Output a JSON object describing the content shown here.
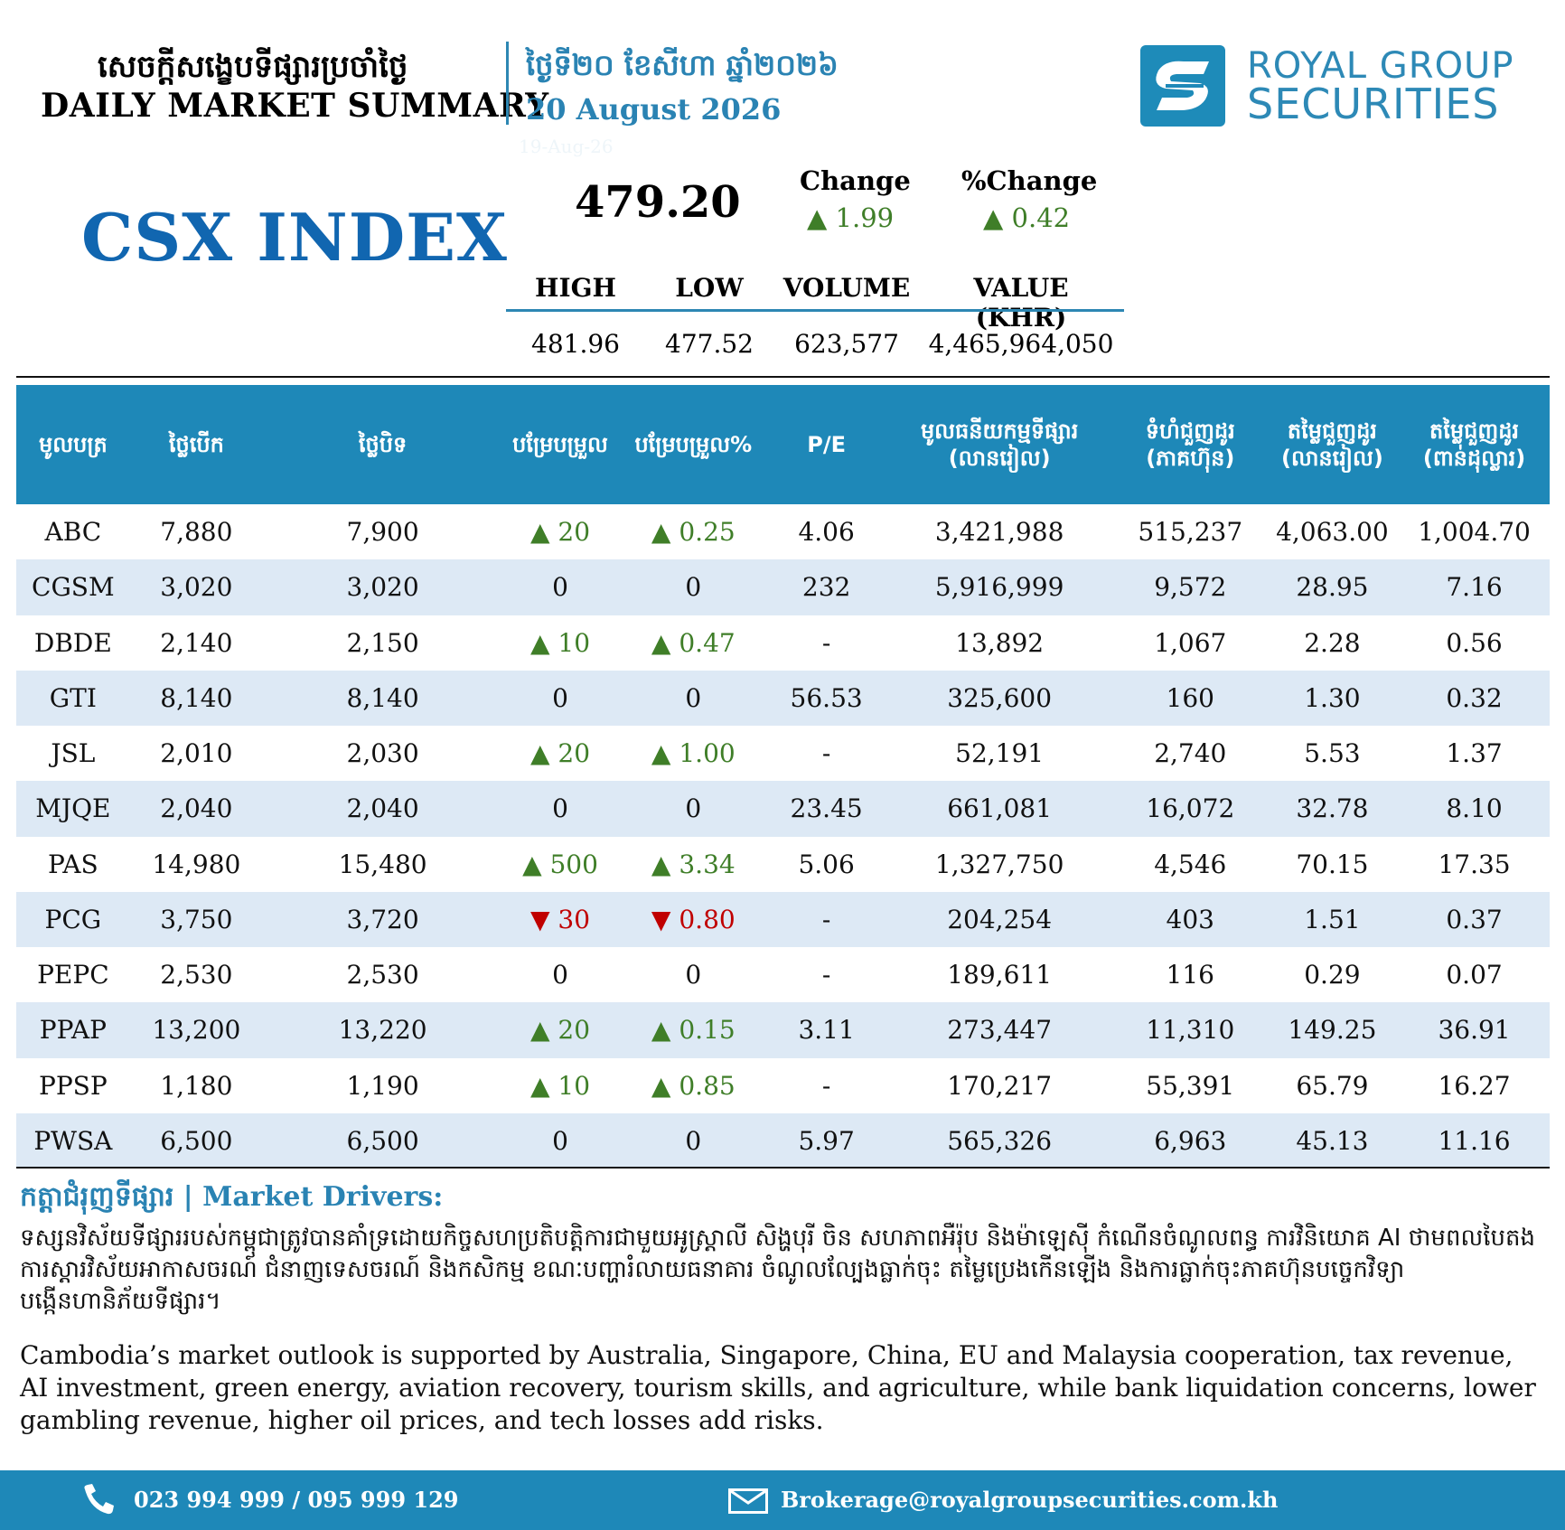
{
  "header": {
    "title_kh": "សេចក្តីសង្ខេបទីផ្សារប្រចាំថ្ងៃ",
    "title_en": "DAILY MARKET SUMMARY",
    "date_kh": "ថ្ងៃទី២០ ខែសីហា ឆ្នាំ២០២៦",
    "date_en": "20 August 2026",
    "date_ghost": "19-Aug-26"
  },
  "logo": {
    "line1": "ROYAL GROUP",
    "line2": "SECURITIES"
  },
  "index": {
    "name": "CSX INDEX",
    "value": "479.20",
    "change_label": "Change",
    "change_value": "▲ 1.99",
    "pct_label": "%Change",
    "pct_value": "▲ 0.42",
    "high_label": "HIGH",
    "low_label": "LOW",
    "volume_label": "VOLUME",
    "valuekhr_label": "VALUE (KHR)",
    "high": "481.96",
    "low": "477.52",
    "volume": "623,577",
    "valuekhr": "4,465,964,050"
  },
  "table": {
    "headers": [
      {
        "l1": "មូលបត្រ",
        "l2": ""
      },
      {
        "l1": "ថ្លៃបើក",
        "l2": ""
      },
      {
        "l1": "ថ្លៃបិទ",
        "l2": ""
      },
      {
        "l1": "បម្រែបម្រួល",
        "l2": ""
      },
      {
        "l1": "បម្រែបម្រួល%",
        "l2": ""
      },
      {
        "l1": "P/E",
        "l2": ""
      },
      {
        "l1": "មូលធនីយកម្មទីផ្សារ",
        "l2": "(លានរៀល)"
      },
      {
        "l1": "ទំហំជួញដូរ",
        "l2": "(ភាគហ៊ុន)"
      },
      {
        "l1": "តម្លៃជួញដូរ",
        "l2": "(លានរៀល)"
      },
      {
        "l1": "តម្លៃជួញដូរ",
        "l2": "(ពាន់ដុល្លារ)"
      }
    ],
    "rows": [
      {
        "sym": "ABC",
        "open": "7,880",
        "close": "7,900",
        "chg": "▲ 20",
        "pct": "▲ 0.25",
        "pe": "4.06",
        "mcap": "3,421,988",
        "vol": "515,237",
        "val_khr": "4,063.00",
        "val_usd": "1,004.70",
        "dir": "up"
      },
      {
        "sym": "CGSM",
        "open": "3,020",
        "close": "3,020",
        "chg": "0",
        "pct": "0",
        "pe": "232",
        "mcap": "5,916,999",
        "vol": "9,572",
        "val_khr": "28.95",
        "val_usd": "7.16",
        "dir": "flat"
      },
      {
        "sym": "DBDE",
        "open": "2,140",
        "close": "2,150",
        "chg": "▲ 10",
        "pct": "▲ 0.47",
        "pe": "-",
        "mcap": "13,892",
        "vol": "1,067",
        "val_khr": "2.28",
        "val_usd": "0.56",
        "dir": "up"
      },
      {
        "sym": "GTI",
        "open": "8,140",
        "close": "8,140",
        "chg": "0",
        "pct": "0",
        "pe": "56.53",
        "mcap": "325,600",
        "vol": "160",
        "val_khr": "1.30",
        "val_usd": "0.32",
        "dir": "flat"
      },
      {
        "sym": "JSL",
        "open": "2,010",
        "close": "2,030",
        "chg": "▲ 20",
        "pct": "▲ 1.00",
        "pe": "-",
        "mcap": "52,191",
        "vol": "2,740",
        "val_khr": "5.53",
        "val_usd": "1.37",
        "dir": "up"
      },
      {
        "sym": "MJQE",
        "open": "2,040",
        "close": "2,040",
        "chg": "0",
        "pct": "0",
        "pe": "23.45",
        "mcap": "661,081",
        "vol": "16,072",
        "val_khr": "32.78",
        "val_usd": "8.10",
        "dir": "flat"
      },
      {
        "sym": "PAS",
        "open": "14,980",
        "close": "15,480",
        "chg": "▲ 500",
        "pct": "▲ 3.34",
        "pe": "5.06",
        "mcap": "1,327,750",
        "vol": "4,546",
        "val_khr": "70.15",
        "val_usd": "17.35",
        "dir": "up"
      },
      {
        "sym": "PCG",
        "open": "3,750",
        "close": "3,720",
        "chg": "▼ 30",
        "pct": "▼ 0.80",
        "pe": "-",
        "mcap": "204,254",
        "vol": "403",
        "val_khr": "1.51",
        "val_usd": "0.37",
        "dir": "down"
      },
      {
        "sym": "PEPC",
        "open": "2,530",
        "close": "2,530",
        "chg": "0",
        "pct": "0",
        "pe": "-",
        "mcap": "189,611",
        "vol": "116",
        "val_khr": "0.29",
        "val_usd": "0.07",
        "dir": "flat"
      },
      {
        "sym": "PPAP",
        "open": "13,200",
        "close": "13,220",
        "chg": "▲ 20",
        "pct": "▲ 0.15",
        "pe": "3.11",
        "mcap": "273,447",
        "vol": "11,310",
        "val_khr": "149.25",
        "val_usd": "36.91",
        "dir": "up"
      },
      {
        "sym": "PPSP",
        "open": "1,180",
        "close": "1,190",
        "chg": "▲ 10",
        "pct": "▲ 0.85",
        "pe": "-",
        "mcap": "170,217",
        "vol": "55,391",
        "val_khr": "65.79",
        "val_usd": "16.27",
        "dir": "up"
      },
      {
        "sym": "PWSA",
        "open": "6,500",
        "close": "6,500",
        "chg": "0",
        "pct": "0",
        "pe": "5.97",
        "mcap": "565,326",
        "vol": "6,963",
        "val_khr": "45.13",
        "val_usd": "11.16",
        "dir": "flat"
      }
    ]
  },
  "drivers": {
    "title": "កត្តាជំរុញទីផ្សារ | Market Drivers:",
    "text_kh": "ទស្សនវិស័យទីផ្សាររបស់កម្ពុជាត្រូវបានគាំទ្រដោយកិច្ចសហប្រតិបត្តិការជាមួយអូស្ត្រាលី សិង្ហបុរី ចិន សហភាពអឺរ៉ុប និងម៉ាឡេស៊ី កំណើនចំណូលពន្ធ ការវិនិយោគ AI ថាមពលបៃតង ការស្តារវិស័យអាកាសចរណ៍ ជំនាញទេសចរណ៍ និងកសិកម្ម ខណៈបញ្ហារំលាយធនាគារ ចំណូលល្បែងធ្លាក់ចុះ តម្លៃប្រេងកើនឡើង និងការធ្លាក់ចុះភាគហ៊ុនបច្ចេកវិទ្យា បង្កើនហានិភ័យទីផ្សារ។",
    "text_en": "Cambodia’s market outlook is supported by Australia, Singapore, China, EU and Malaysia cooperation, tax revenue, AI investment, green energy, aviation recovery, tourism skills, and agriculture, while bank liquidation concerns, lower gambling revenue, higher oil prices, and tech losses add risks."
  },
  "footer": {
    "phone": "023 994 999 / 095 999 129",
    "email": "Brokerage@royalgroupsecurities.com.kh",
    "phone_icon": "phone-icon",
    "mail_icon": "mail-icon"
  },
  "colors": {
    "brand_blue": "#1e88b8",
    "index_blue": "#1166b0",
    "up_green": "#3f7e28",
    "down_red": "#c00000",
    "row_alt": "#dde9f5"
  }
}
